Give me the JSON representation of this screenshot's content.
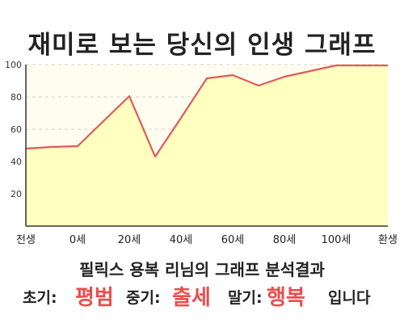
{
  "chart_data": {
    "type": "area",
    "title": "재미로 보는 당신의 인생 그래프",
    "xlabel": "",
    "ylabel": "",
    "x": [
      0,
      10,
      20,
      30,
      40,
      50,
      60,
      70,
      80,
      90,
      100,
      110,
      120,
      130,
      140
    ],
    "y": [
      48,
      49,
      49.5,
      65,
      80.5,
      43,
      67,
      91.5,
      93.5,
      87,
      92.5,
      96,
      99.5,
      99.5,
      99.5
    ],
    "xlim": [
      0,
      140
    ],
    "ylim": [
      0,
      100
    ],
    "yticks": [
      20,
      40,
      60,
      80,
      100
    ],
    "xticks": [
      {
        "x": 0,
        "label": "전생"
      },
      {
        "x": 20,
        "label": "0세"
      },
      {
        "x": 40,
        "label": "20세"
      },
      {
        "x": 60,
        "label": "40세"
      },
      {
        "x": 80,
        "label": "60세"
      },
      {
        "x": 100,
        "label": "80세"
      },
      {
        "x": 120,
        "label": "100세"
      },
      {
        "x": 140,
        "label": "환생"
      }
    ],
    "grid": "horizontal dashed",
    "legend": "none",
    "colors": {
      "line": "#e05a5a",
      "fill": "#ffffc0",
      "background": "#fffdf0"
    }
  },
  "summary": {
    "text": "필릭스 용복 리님의 그래프 분석결과"
  },
  "result": {
    "early_label": "초기:",
    "early_value": "평범",
    "middle_label": "중기:",
    "middle_value": "출세",
    "late_label": "말기:",
    "late_value": "행복",
    "ending": "입니다"
  },
  "colors": {
    "highlight": "#e94d4d"
  }
}
